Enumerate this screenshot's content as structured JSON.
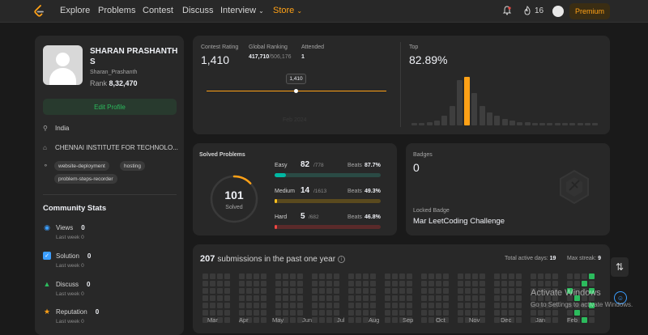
{
  "nav": {
    "items": [
      "Explore",
      "Problems",
      "Contest",
      "Discuss",
      "Interview",
      "Store"
    ],
    "streak": "16",
    "premium": "Premium"
  },
  "profile": {
    "name": "SHARAN PRASHANTH S",
    "username": "Sharan_Prashanth",
    "rank_label": "Rank",
    "rank_value": "8,32,470",
    "edit_label": "Edit Profile",
    "location": "India",
    "school": "CHENNAI INSTITUTE FOR TECHNOLO...",
    "tags": [
      "website-deployment",
      "hosting",
      "problem-steps-recorder"
    ]
  },
  "community": {
    "title": "Community Stats",
    "items": [
      {
        "label": "Views",
        "value": "0",
        "sub": "Last week 0",
        "color": "#3b9eff"
      },
      {
        "label": "Solution",
        "value": "0",
        "sub": "Last week 0",
        "color": "#3b9eff"
      },
      {
        "label": "Discuss",
        "value": "0",
        "sub": "Last week 0",
        "color": "#2cbb5d"
      },
      {
        "label": "Reputation",
        "value": "0",
        "sub": "Last week 0",
        "color": "#ffa116"
      }
    ]
  },
  "contest": {
    "rating_label": "Contest Rating",
    "rating": "1,410",
    "global_label": "Global Ranking",
    "global_value": "417,710",
    "global_total": "/506,176",
    "attended_label": "Attended",
    "attended": "1",
    "tooltip": "1,410",
    "month_label": "Feb 2024",
    "top_label": "Top",
    "top_value": "82.89%",
    "histogram": [
      1,
      1,
      2,
      3,
      6,
      12,
      28,
      30,
      20,
      12,
      8,
      6,
      4,
      3,
      2,
      2,
      1,
      1,
      1,
      1,
      1,
      1,
      1,
      1,
      1
    ],
    "highlight_index": 7
  },
  "solved": {
    "title": "Solved Problems",
    "total": "101",
    "total_label": "Solved",
    "progress": 0.128,
    "rows": [
      {
        "label": "Easy",
        "count": "82",
        "total": "/778",
        "beats_label": "Beats",
        "beats": "87.7%",
        "fraction": 0.105,
        "color": "#00b8a3",
        "track": "#2a4a44"
      },
      {
        "label": "Medium",
        "count": "14",
        "total": "/1613",
        "beats_label": "Beats",
        "beats": "49.3%",
        "fraction": 0.009,
        "color": "#ffc01e",
        "track": "#5a4a1e"
      },
      {
        "label": "Hard",
        "count": "5",
        "total": "/682",
        "beats_label": "Beats",
        "beats": "46.8%",
        "fraction": 0.007,
        "color": "#ef4743",
        "track": "#5a2a2a"
      }
    ]
  },
  "badges": {
    "title": "Badges",
    "count": "0",
    "locked_label": "Locked Badge",
    "locked_name": "Mar LeetCoding Challenge"
  },
  "submissions": {
    "count": "207",
    "text": "submissions in the past one year",
    "active_label": "Total active days:",
    "active_value": "19",
    "streak_label": "Max streak:",
    "streak_value": "9",
    "months": [
      "Mar",
      "Apr",
      "May",
      "Jun",
      "Jul",
      "Aug",
      "Sep",
      "Oct",
      "Nov",
      "Dec",
      "Jan",
      "Feb"
    ]
  },
  "watermark": {
    "line1": "Activate Windows",
    "line2": "Go to Settings to activate Windows."
  }
}
